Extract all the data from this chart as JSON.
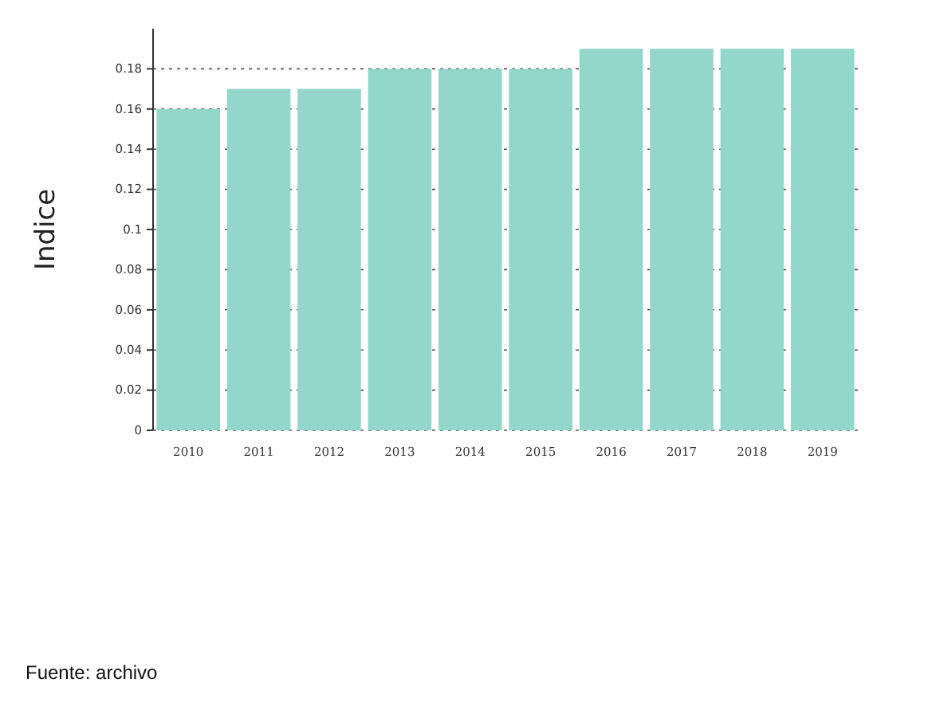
{
  "chart_data": {
    "type": "bar",
    "ylabel": "Indice",
    "categories": [
      "2010",
      "2011",
      "2012",
      "2013",
      "2014",
      "2015",
      "2016",
      "2017",
      "2018",
      "2019"
    ],
    "values": [
      0.16,
      0.17,
      0.17,
      0.18,
      0.18,
      0.18,
      0.19,
      0.19,
      0.19,
      0.19
    ],
    "color": "#93d6ca",
    "ylim": [
      0,
      0.2
    ],
    "yticks": [
      0,
      0.02,
      0.04,
      0.06,
      0.08,
      0.1,
      0.12,
      0.14,
      0.16,
      0.18
    ],
    "grid": "y",
    "annotations": [
      "Fuente: archivo"
    ]
  }
}
